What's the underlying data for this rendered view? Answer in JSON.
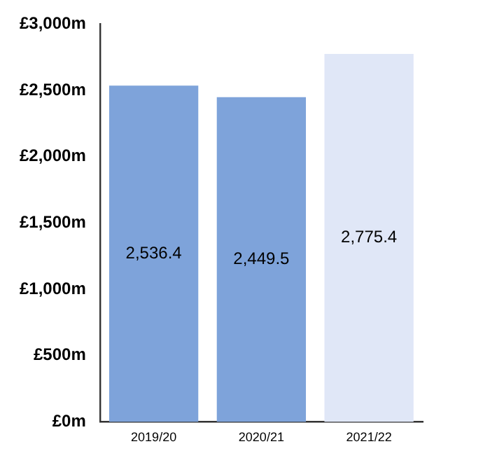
{
  "chart_data": {
    "type": "bar",
    "categories": [
      "2019/20",
      "2020/21",
      "2021/22"
    ],
    "values": [
      2536.4,
      2449.5,
      2775.4
    ],
    "colors": [
      "#7ea3da",
      "#7ea3da",
      "#e0e7f7"
    ],
    "value_labels": [
      "2,536.4",
      "2,449.5",
      "2,775.4"
    ],
    "ylim": [
      0,
      3000
    ],
    "yticks": [
      {
        "value": 0,
        "label": "£0m"
      },
      {
        "value": 500,
        "label": "£500m"
      },
      {
        "value": 1000,
        "label": "£1,000m"
      },
      {
        "value": 1500,
        "label": "£1,500m"
      },
      {
        "value": 2000,
        "label": "£2,000m"
      },
      {
        "value": 2500,
        "label": "£2,500m"
      },
      {
        "value": 3000,
        "label": "£3,000m"
      }
    ],
    "grid": false,
    "legend": false
  }
}
